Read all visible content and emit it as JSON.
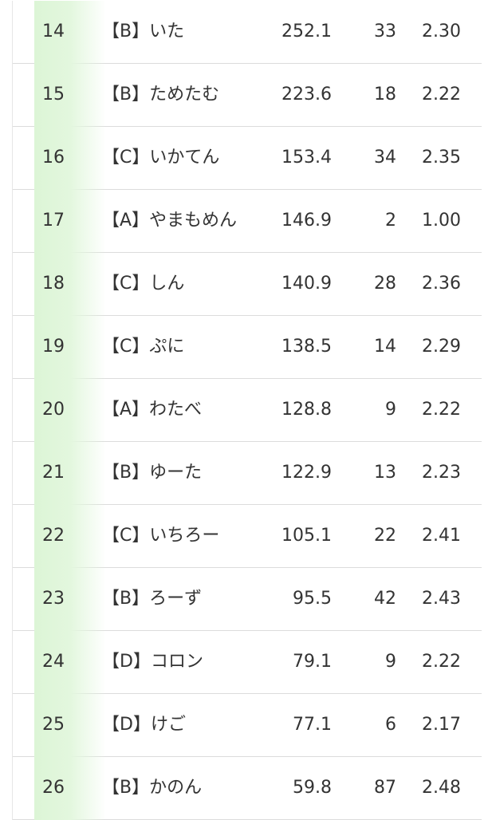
{
  "table": {
    "rows": [
      [
        "14",
        "【B】いた",
        "252.1",
        "33",
        "2.30"
      ],
      [
        "15",
        "【B】ためたむ",
        "223.6",
        "18",
        "2.22"
      ],
      [
        "16",
        "【C】いかてん",
        "153.4",
        "34",
        "2.35"
      ],
      [
        "17",
        "【A】やまもめん",
        "146.9",
        "2",
        "1.00"
      ],
      [
        "18",
        "【C】しん",
        "140.9",
        "28",
        "2.36"
      ],
      [
        "19",
        "【C】ぷに",
        "138.5",
        "14",
        "2.29"
      ],
      [
        "20",
        "【A】わたべ",
        "128.8",
        "9",
        "2.22"
      ],
      [
        "21",
        "【B】ゆーた",
        "122.9",
        "13",
        "2.23"
      ],
      [
        "22",
        "【C】いちろー",
        "105.1",
        "22",
        "2.41"
      ],
      [
        "23",
        "【B】ろーず",
        "95.5",
        "42",
        "2.43"
      ],
      [
        "24",
        "【D】コロン",
        "79.1",
        "9",
        "2.22"
      ],
      [
        "25",
        "【D】けご",
        "77.1",
        "6",
        "2.17"
      ],
      [
        "26",
        "【B】かのん",
        "59.8",
        "87",
        "2.48"
      ]
    ]
  }
}
